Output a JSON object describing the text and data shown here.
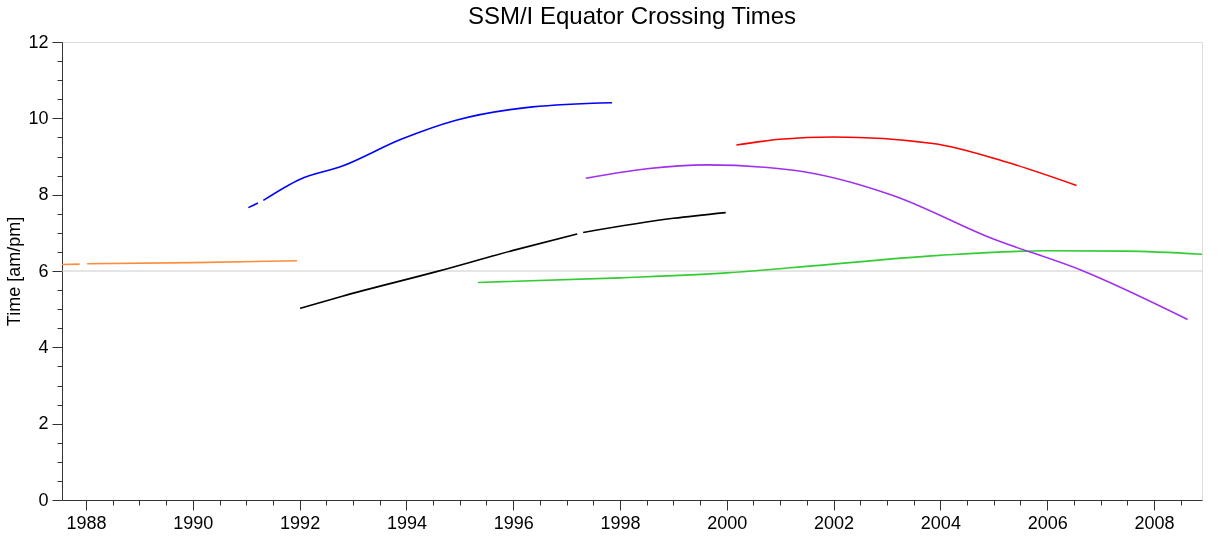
{
  "chart_data": {
    "type": "line",
    "title": "SSM/I Equator Crossing Times",
    "ylabel": "Time [am/pm]",
    "xlim": [
      1987.55,
      2008.9
    ],
    "ylim": [
      0,
      12
    ],
    "xticks": [
      1988,
      {
        "value": 1988.5,
        "label": null
      },
      {
        "value": 1989,
        "label": null
      },
      {
        "value": 1989.5,
        "label": null
      },
      1990,
      {
        "value": 1990.5,
        "label": null
      },
      {
        "value": 1991,
        "label": null
      },
      {
        "value": 1991.5,
        "label": null
      },
      1992,
      {
        "value": 1992.5,
        "label": null
      },
      {
        "value": 1993,
        "label": null
      },
      {
        "value": 1993.5,
        "label": null
      },
      1994,
      {
        "value": 1994.5,
        "label": null
      },
      {
        "value": 1995,
        "label": null
      },
      {
        "value": 1995.5,
        "label": null
      },
      1996,
      {
        "value": 1996.5,
        "label": null
      },
      {
        "value": 1997,
        "label": null
      },
      {
        "value": 1997.5,
        "label": null
      },
      1998,
      {
        "value": 1998.5,
        "label": null
      },
      {
        "value": 1999,
        "label": null
      },
      {
        "value": 1999.5,
        "label": null
      },
      2000,
      {
        "value": 2000.5,
        "label": null
      },
      {
        "value": 2001,
        "label": null
      },
      {
        "value": 2001.5,
        "label": null
      },
      2002,
      {
        "value": 2002.5,
        "label": null
      },
      {
        "value": 2003,
        "label": null
      },
      {
        "value": 2003.5,
        "label": null
      },
      2004,
      {
        "value": 2004.5,
        "label": null
      },
      {
        "value": 2005,
        "label": null
      },
      {
        "value": 2005.5,
        "label": null
      },
      2006,
      {
        "value": 2006.5,
        "label": null
      },
      {
        "value": 2007,
        "label": null
      },
      {
        "value": 2007.5,
        "label": null
      },
      2008,
      {
        "value": 2008.5,
        "label": null
      }
    ],
    "yticks": [
      0,
      {
        "value": 0.5,
        "label": null
      },
      {
        "value": 1,
        "label": null
      },
      {
        "value": 1.5,
        "label": null
      },
      2,
      {
        "value": 2.5,
        "label": null
      },
      {
        "value": 3,
        "label": null
      },
      {
        "value": 3.5,
        "label": null
      },
      4,
      {
        "value": 4.5,
        "label": null
      },
      {
        "value": 5,
        "label": null
      },
      {
        "value": 5.5,
        "label": null
      },
      6,
      {
        "value": 6.5,
        "label": null
      },
      {
        "value": 7,
        "label": null
      },
      {
        "value": 7.5,
        "label": null
      },
      8,
      {
        "value": 8.5,
        "label": null
      },
      {
        "value": 9,
        "label": null
      },
      {
        "value": 9.5,
        "label": null
      },
      10,
      {
        "value": 10.5,
        "label": null
      },
      {
        "value": 11,
        "label": null
      },
      {
        "value": 11.5,
        "label": null
      },
      12
    ],
    "grid": false,
    "line_style": "solid",
    "ref_lines": [
      {
        "axis": "y",
        "value": 6,
        "color": "#cccccc"
      }
    ],
    "series": [
      {
        "color": "#ff8c3a",
        "x": [
          1987.55,
          1987.88,
          1987.95,
          1988.02,
          1990.0,
          1991.95
        ],
        "values": [
          6.17,
          6.18,
          null,
          6.19,
          6.22,
          6.27
        ]
      },
      {
        "color": "#0000ff",
        "x": [
          1991.04,
          1991.22,
          1991.27,
          1991.32,
          1992.0,
          1992.8,
          1993.9,
          1994.93,
          1996.36,
          1997.85
        ],
        "values": [
          7.66,
          7.78,
          null,
          7.85,
          8.4,
          8.75,
          9.45,
          9.95,
          10.3,
          10.41
        ]
      },
      {
        "color": "#000000",
        "x": [
          1992.01,
          1992.8,
          1994.58,
          1996.0,
          1997.2,
          1997.25,
          1997.31,
          1999.0,
          1999.98
        ],
        "values": [
          5.02,
          5.34,
          5.99,
          6.54,
          6.97,
          null,
          7.01,
          7.38,
          7.53
        ]
      },
      {
        "color": "#33cc33",
        "x": [
          1995.34,
          1998.0,
          2000.0,
          2001.25,
          2003.98,
          2006.0,
          2007.46,
          2008.9
        ],
        "values": [
          5.7,
          5.82,
          5.95,
          6.09,
          6.41,
          6.53,
          6.52,
          6.44
        ]
      },
      {
        "color": "#a030f0",
        "x": [
          1997.36,
          1998.5,
          1999.63,
          2001.25,
          2003.11,
          2004.97,
          2006.64,
          2008.63
        ],
        "values": [
          8.43,
          8.68,
          8.78,
          8.64,
          7.98,
          6.85,
          6.02,
          4.73
        ]
      },
      {
        "color": "#ff0000",
        "x": [
          2000.18,
          2001.0,
          2002.0,
          2003.86,
          2005.22,
          2006.55
        ],
        "values": [
          9.3,
          9.45,
          9.51,
          9.34,
          8.86,
          8.24
        ]
      }
    ]
  }
}
